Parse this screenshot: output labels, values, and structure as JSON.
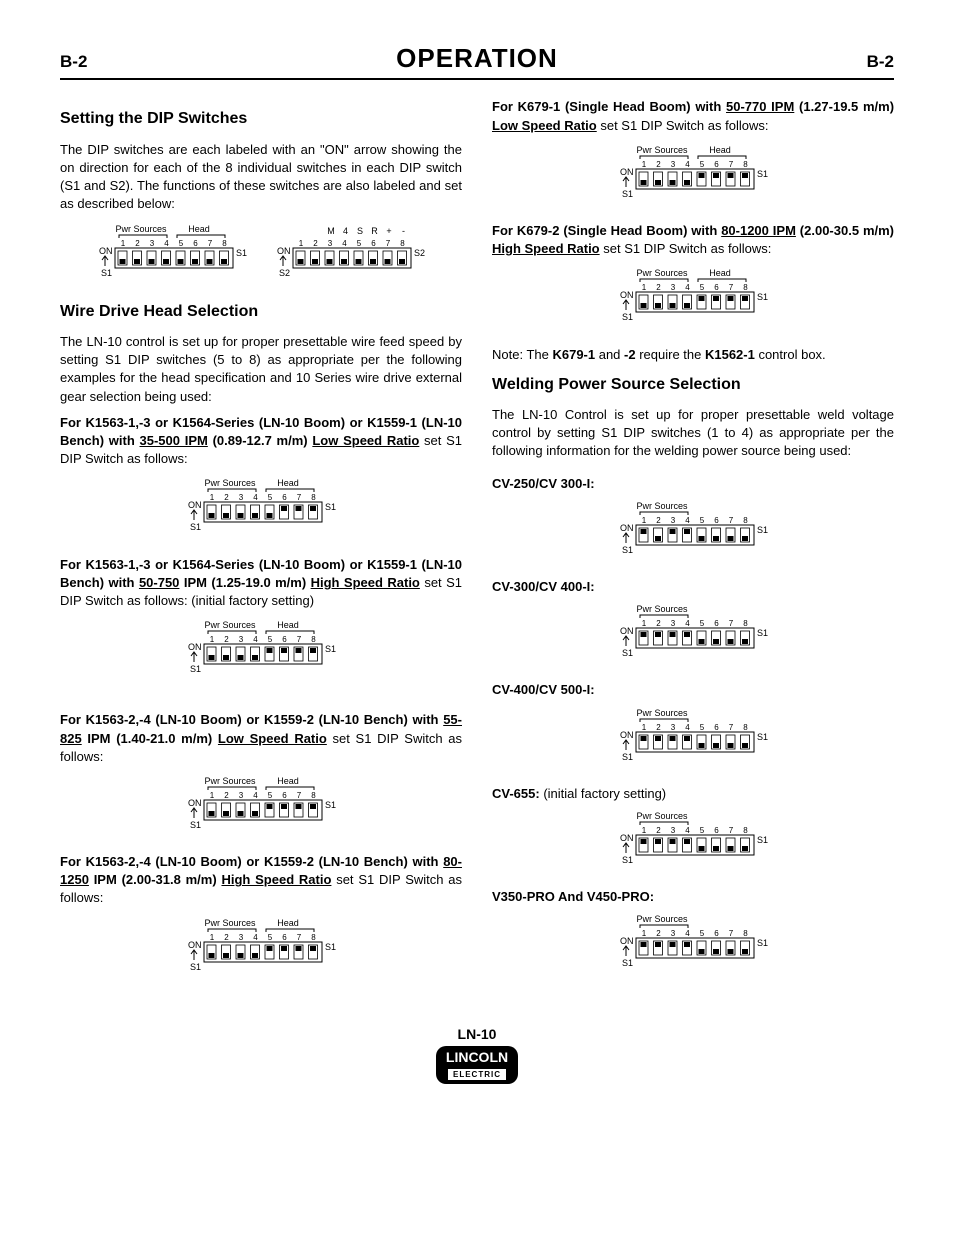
{
  "header": {
    "left": "B-2",
    "title": "OPERATION",
    "right": "B-2"
  },
  "left": {
    "h_dip": "Setting the DIP Switches",
    "p_dip": "The DIP switches are each labeled with an \"ON\" arrow showing the on direction for each of the 8 individual switches in each DIP switch (S1 and S2). The functions of these switches are also labeled and set as described below:",
    "h_wire": "Wire Drive Head Selection",
    "p_wire": "The LN-10 control is set up for proper presettable wire feed speed by setting S1 DIP switches (5 to 8) as appropriate per the following examples for the head specification and 10 Series wire drive external gear selection being used:",
    "c1a": "For K1563-1,-3 or K1564-Series (LN-10 Boom) or K1559-1 (LN-10 Bench) with ",
    "c1u": "35-500 IPM",
    "c1b": " (0.89-12.7 m/m) ",
    "c1u2": "Low Speed Ratio",
    "c1c": " set S1 DIP Switch as follows:",
    "c2a": "For K1563-1,-3 or K1564-Series (LN-10 Boom) or K1559-1 (LN-10 Bench) with ",
    "c2u": "50-750",
    "c2b": " IPM (1.25-19.0 m/m) ",
    "c2u2": "High Speed Ratio",
    "c2c": " set S1 DIP Switch as follows:  (initial factory setting)",
    "c3a": "For K1563-2,-4 (LN-10 Boom) or K1559-2 (LN-10 Bench) with ",
    "c3u": "55-825",
    "c3b": " IPM (1.40-21.0 m/m) ",
    "c3u2": "Low Speed Ratio",
    "c3c": " set S1 DIP Switch as follows:",
    "c4a": "For K1563-2,-4 (LN-10 Boom) or K1559-2 (LN-10 Bench) with ",
    "c4u": "80-1250",
    "c4b": " IPM (2.00-31.8 m/m) ",
    "c4u2": "High Speed Ratio",
    "c4c": " set S1 DIP Switch as follows:"
  },
  "right": {
    "r1a": "For K679-1 (Single Head Boom) with ",
    "r1u": "50-770 IPM",
    "r1b": " (1.27-19.5 m/m) ",
    "r1u2": "Low Speed Ratio",
    "r1c": " set S1 DIP Switch as follows:",
    "r2a": "For K679-2 (Single Head Boom) with ",
    "r2u": "80-1200 IPM",
    "r2b": " (2.00-30.5 m/m) ",
    "r2u2": "High Speed Ratio",
    "r2c": " set S1 DIP Switch as follows:",
    "note_a": "Note: The ",
    "note_b": "K679-1",
    "note_c": " and ",
    "note_d": "-2 ",
    "note_e": " require the ",
    "note_f": "K1562-1",
    "note_g": " control box.",
    "h_weld": "Welding Power Source Selection",
    "p_weld": "The LN-10 Control is set up for proper presettable weld voltage control by setting S1 DIP switches (1 to 4) as appropriate per the following information for the welding power source being used:",
    "ps1": "CV-250/CV 300-I:",
    "ps2": "CV-300/CV 400-I:",
    "ps3": "CV-400/CV 500-I:",
    "ps4a": "CV-655:",
    "ps4b": " (initial factory setting)",
    "ps5": "V350-PRO And V450-PRO:"
  },
  "footer": {
    "model": "LN-10",
    "brand": "LINCOLN",
    "sub": "ELECTRIC"
  },
  "dip": {
    "labels": {
      "pwr": "Pwr Sources",
      "head": "Head",
      "on": "ON",
      "s1": "S1",
      "s2": "S2",
      "nums": [
        "1",
        "2",
        "3",
        "4",
        "5",
        "6",
        "7",
        "8"
      ],
      "s2top": [
        "M",
        "4",
        "S",
        "R",
        "+",
        "-"
      ]
    },
    "colors": {
      "stroke": "#000000",
      "fill": "#ffffff",
      "text": "#000000"
    },
    "switches": {
      "intro_s1": [
        0,
        0,
        0,
        0,
        0,
        0,
        0,
        0
      ],
      "intro_s2": [
        0,
        0,
        0,
        0,
        0,
        0,
        0,
        0
      ],
      "c1": [
        0,
        0,
        0,
        0,
        0,
        1,
        1,
        1
      ],
      "c2": [
        0,
        0,
        0,
        0,
        1,
        1,
        1,
        1
      ],
      "c3": [
        0,
        0,
        0,
        0,
        1,
        1,
        1,
        1
      ],
      "c4": [
        0,
        0,
        0,
        0,
        1,
        1,
        1,
        1
      ],
      "r1": [
        0,
        0,
        0,
        0,
        1,
        1,
        1,
        1
      ],
      "r2": [
        0,
        0,
        0,
        0,
        1,
        1,
        1,
        1
      ],
      "ps1": [
        1,
        0,
        1,
        1,
        0,
        0,
        0,
        0
      ],
      "ps2": [
        1,
        1,
        1,
        1,
        0,
        0,
        0,
        0
      ],
      "ps3": [
        1,
        1,
        1,
        1,
        0,
        0,
        0,
        0
      ],
      "ps4": [
        1,
        1,
        1,
        1,
        0,
        0,
        0,
        0
      ],
      "ps5": [
        1,
        1,
        1,
        1,
        0,
        0,
        0,
        0
      ]
    }
  }
}
